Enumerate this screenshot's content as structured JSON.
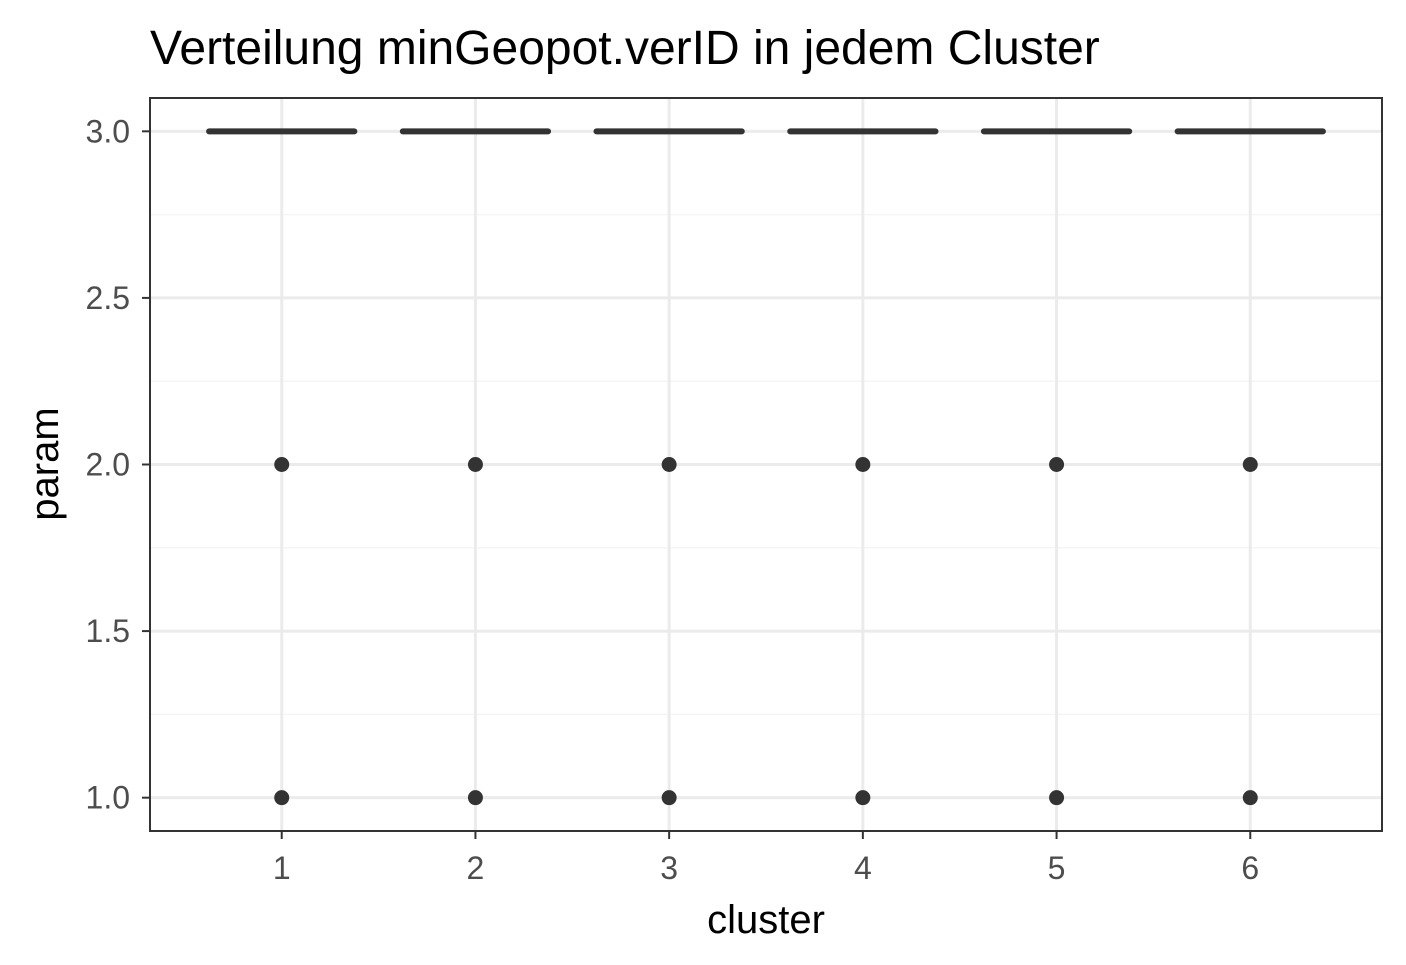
{
  "chart_data": {
    "type": "boxplot",
    "title": "Verteilung minGeopot.verID in jedem Cluster",
    "xlabel": "cluster",
    "ylabel": "param",
    "categories": [
      "1",
      "2",
      "3",
      "4",
      "5",
      "6"
    ],
    "ylim": [
      0.9,
      3.1
    ],
    "y_ticks": [
      1.0,
      1.5,
      2.0,
      2.5,
      3.0
    ],
    "y_tick_labels": [
      "1.0",
      "1.5",
      "2.0",
      "2.5",
      "3.0"
    ],
    "grid": true,
    "boxes": [
      {
        "cluster": "1",
        "median": 3.0,
        "q1": 3.0,
        "q3": 3.0,
        "outliers": [
          2.0,
          1.0
        ]
      },
      {
        "cluster": "2",
        "median": 3.0,
        "q1": 3.0,
        "q3": 3.0,
        "outliers": [
          2.0,
          1.0
        ]
      },
      {
        "cluster": "3",
        "median": 3.0,
        "q1": 3.0,
        "q3": 3.0,
        "outliers": [
          2.0,
          1.0
        ]
      },
      {
        "cluster": "4",
        "median": 3.0,
        "q1": 3.0,
        "q3": 3.0,
        "outliers": [
          2.0,
          1.0
        ]
      },
      {
        "cluster": "5",
        "median": 3.0,
        "q1": 3.0,
        "q3": 3.0,
        "outliers": [
          2.0,
          1.0
        ]
      },
      {
        "cluster": "6",
        "median": 3.0,
        "q1": 3.0,
        "q3": 3.0,
        "outliers": [
          2.0,
          1.0
        ]
      }
    ],
    "colors": {
      "marks": "#333333",
      "grid_major": "#ebebeb",
      "grid_minor": "#f5f5f5",
      "panel_border": "#333333"
    }
  }
}
